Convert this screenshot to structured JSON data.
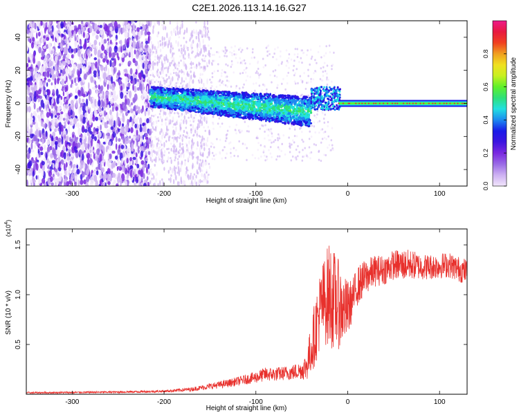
{
  "title": "C2E1.2026.113.14.16.G27",
  "colors": {
    "snr_line": "#e8302c",
    "background": "#ffffff",
    "axis": "#000000"
  },
  "chart_data": [
    {
      "type": "heatmap",
      "name": "spectrogram",
      "xlabel": "Height of straight line (km)",
      "ylabel": "Frequency (Hz)",
      "xlim": [
        -350,
        130
      ],
      "ylim": [
        -50,
        50
      ],
      "xticks": [
        -300,
        -200,
        -100,
        0,
        100
      ],
      "yticks": [
        -40,
        -20,
        0,
        20,
        40
      ],
      "colorbar": {
        "label": "Normalized spectral amplitude",
        "range": [
          0,
          1
        ],
        "ticks": [
          0.0,
          0.2,
          0.4,
          0.6,
          0.8
        ],
        "colormap": [
          "#f1e6fb",
          "#cdb0f2",
          "#9a6ae6",
          "#7a28e0",
          "#3c14e0",
          "#1a1ae8",
          "#1c8af0",
          "#22e0e0",
          "#2ee07a",
          "#5ef02a",
          "#c8f020",
          "#f0e020",
          "#f0a020",
          "#f04020",
          "#e81a40",
          "#ee1a8a"
        ]
      },
      "description_of_structure": {
        "noise_region_km": [
          -350,
          -215
        ],
        "faint_noise_region_km": [
          -215,
          -150
        ],
        "signal_tail_km": [
          -215,
          -40
        ],
        "carrier_start_km": -10,
        "carrier_frequency_hz": 0
      }
    },
    {
      "type": "line",
      "name": "snr",
      "xlabel": "Height of straight line (km)",
      "ylabel": "SNR (10 * v/v)",
      "scale_label_base": "(x10",
      "scale_label_exp": "4",
      "scale_label_close": ")",
      "xlim": [
        -350,
        130
      ],
      "ylim": [
        0,
        16600
      ],
      "xticks": [
        -300,
        -200,
        -100,
        0,
        100
      ],
      "yticks": [
        5000,
        10000,
        15000
      ],
      "ytick_labels": [
        "0.5",
        "1.0",
        "1.5"
      ],
      "series": [
        {
          "name": "SNR",
          "x": [
            -350,
            -300,
            -250,
            -200,
            -170,
            -150,
            -130,
            -110,
            -100,
            -90,
            -80,
            -70,
            -60,
            -50,
            -45,
            -40,
            -35,
            -30,
            -25,
            -20,
            -15,
            -10,
            -5,
            0,
            5,
            10,
            20,
            30,
            40,
            50,
            60,
            70,
            80,
            90,
            100,
            110,
            120,
            130
          ],
          "mean": [
            150,
            180,
            220,
            300,
            500,
            800,
            1100,
            1500,
            1700,
            2000,
            2000,
            2100,
            2200,
            2400,
            2800,
            4500,
            6500,
            8500,
            9500,
            10000,
            9500,
            9000,
            8500,
            8500,
            9500,
            10800,
            11800,
            12400,
            12500,
            13000,
            13000,
            13000,
            12800,
            12800,
            12900,
            13000,
            12600,
            12300
          ],
          "amp": [
            80,
            90,
            100,
            120,
            200,
            300,
            400,
            500,
            600,
            700,
            700,
            700,
            800,
            900,
            1500,
            2500,
            3500,
            4000,
            4500,
            5500,
            5000,
            4500,
            3500,
            3000,
            2000,
            2000,
            1800,
            1600,
            1500,
            1500,
            1600,
            1500,
            1300,
            1300,
            1300,
            1300,
            1300,
            1300
          ]
        }
      ]
    }
  ]
}
